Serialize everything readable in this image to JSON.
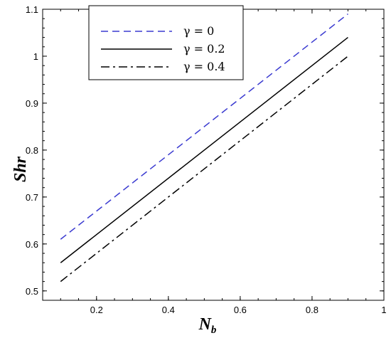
{
  "chart_data": {
    "type": "line",
    "title": "",
    "xlabel": "N",
    "xlabel_subscript": "b",
    "ylabel": "Shr",
    "xlim": [
      0.05,
      1.0
    ],
    "ylim": [
      0.48,
      1.1
    ],
    "grid": false,
    "legend_position": "top-left",
    "x_ticks": [
      0.2,
      0.4,
      0.6,
      0.8,
      1
    ],
    "x_tick_labels": [
      "0.2",
      "0.4",
      "0.6",
      "0.8",
      "1"
    ],
    "y_ticks": [
      0.5,
      0.6,
      0.7,
      0.8,
      0.9,
      1.0,
      1.1
    ],
    "y_tick_labels": [
      "0.5",
      "0.6",
      "0.7",
      "0.8",
      "0.9",
      "1",
      "1.1"
    ],
    "series": [
      {
        "name": "γ = 0",
        "color": "#3a3ad0",
        "dash": "dashed",
        "x": [
          0.1,
          0.9
        ],
        "y": [
          0.61,
          1.09
        ]
      },
      {
        "name": "γ = 0.2",
        "color": "#000000",
        "dash": "solid",
        "x": [
          0.1,
          0.9
        ],
        "y": [
          0.56,
          1.04
        ]
      },
      {
        "name": "γ = 0.4",
        "color": "#000000",
        "dash": "dashdot",
        "x": [
          0.1,
          0.9
        ],
        "y": [
          0.52,
          1.0
        ]
      }
    ]
  }
}
